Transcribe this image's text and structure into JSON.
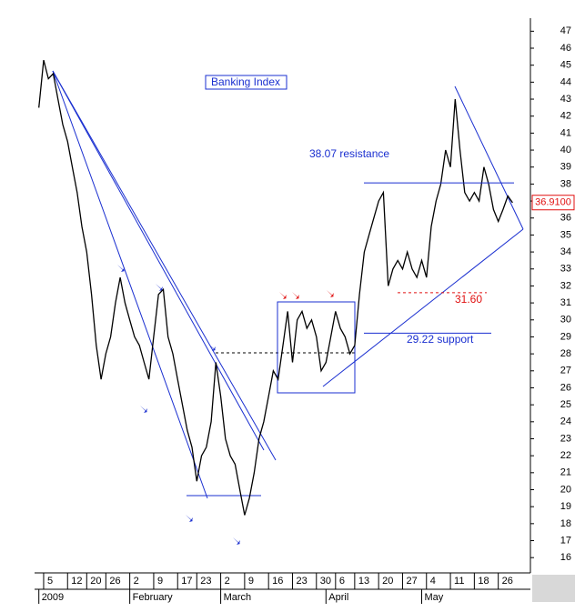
{
  "chart_data": {
    "type": "line",
    "title": "Banking Index",
    "color": "#000000",
    "categories": [
      null,
      "5",
      null,
      null,
      null,
      null,
      "12",
      null,
      null,
      null,
      "20",
      null,
      null,
      null,
      "26",
      null,
      null,
      null,
      null,
      "2",
      null,
      null,
      null,
      null,
      "9",
      null,
      null,
      null,
      null,
      "17",
      null,
      null,
      null,
      "23",
      null,
      null,
      null,
      null,
      "2",
      null,
      null,
      null,
      null,
      "9",
      null,
      null,
      null,
      null,
      "16",
      null,
      null,
      null,
      null,
      "23",
      null,
      null,
      null,
      null,
      "30",
      null,
      null,
      null,
      "6",
      null,
      null,
      null,
      "13",
      null,
      null,
      null,
      null,
      "20",
      null,
      null,
      null,
      null,
      "27",
      null,
      null,
      null,
      null,
      "4",
      null,
      null,
      null,
      null,
      "11",
      null,
      null,
      null,
      null,
      "18",
      null,
      null,
      null,
      null,
      "26",
      null,
      null,
      null
    ],
    "months": [
      "2009",
      null,
      null,
      null,
      null,
      null,
      null,
      null,
      null,
      null,
      null,
      null,
      null,
      null,
      null,
      null,
      null,
      null,
      null,
      "February",
      null,
      null,
      null,
      null,
      null,
      null,
      null,
      null,
      null,
      null,
      null,
      null,
      null,
      null,
      null,
      null,
      null,
      null,
      "March",
      null,
      null,
      null,
      null,
      null,
      null,
      null,
      null,
      null,
      null,
      null,
      null,
      null,
      null,
      null,
      null,
      null,
      null,
      null,
      null,
      null,
      "April",
      null,
      null,
      null,
      null,
      null,
      null,
      null,
      null,
      null,
      null,
      null,
      null,
      null,
      null,
      null,
      null,
      null,
      null,
      null,
      "May",
      null,
      null,
      null,
      null,
      null,
      null,
      null,
      null,
      null,
      null,
      null,
      null,
      null,
      null,
      null,
      null,
      null,
      null,
      null
    ],
    "values": [
      42.5,
      45.3,
      44.2,
      44.5,
      43,
      41.5,
      40.5,
      39,
      37.5,
      35.5,
      34,
      31.5,
      28.5,
      26.5,
      28,
      29,
      31,
      32.5,
      31,
      30,
      29,
      28.5,
      27.5,
      26.5,
      29,
      31.5,
      31.8,
      29,
      28,
      26.5,
      25,
      23.5,
      22.5,
      20.5,
      22,
      22.5,
      24,
      27.5,
      25.5,
      23,
      22,
      21.5,
      20,
      18.5,
      19.5,
      21,
      23,
      24,
      25.5,
      27,
      26.5,
      28.5,
      30.5,
      27.5,
      30,
      30.5,
      29.5,
      30,
      29,
      27,
      27.5,
      29,
      30.5,
      29.5,
      29,
      28,
      28.5,
      31.5,
      34,
      35,
      36,
      37,
      37.5,
      32,
      33,
      33.5,
      33,
      34,
      33,
      32.5,
      33.5,
      32.5,
      35.5,
      37,
      38,
      40,
      39,
      43,
      40,
      37.5,
      37,
      37.5,
      37,
      39,
      38,
      36.5,
      35.8,
      36.5,
      37.3,
      36.9
    ],
    "ylim": [
      15.1,
      47.5
    ],
    "yticks": [
      16,
      17,
      18,
      19,
      20,
      21,
      22,
      23,
      24,
      25,
      26,
      27,
      28,
      29,
      30,
      31,
      32,
      33,
      34,
      35,
      36,
      37,
      38,
      39,
      40,
      41,
      42,
      43,
      44,
      45,
      46,
      47
    ],
    "annotations": [
      {
        "text": "38.07 resistance",
        "value": 38.07,
        "color": "#1a2fd0"
      },
      {
        "text": "29.22 support",
        "value": 29.22,
        "color": "#1a2fd0"
      },
      {
        "text": "31.60",
        "value": 31.6,
        "color": "#e01010"
      }
    ],
    "last_price": {
      "value": 36.91,
      "label": "36.9100"
    }
  }
}
